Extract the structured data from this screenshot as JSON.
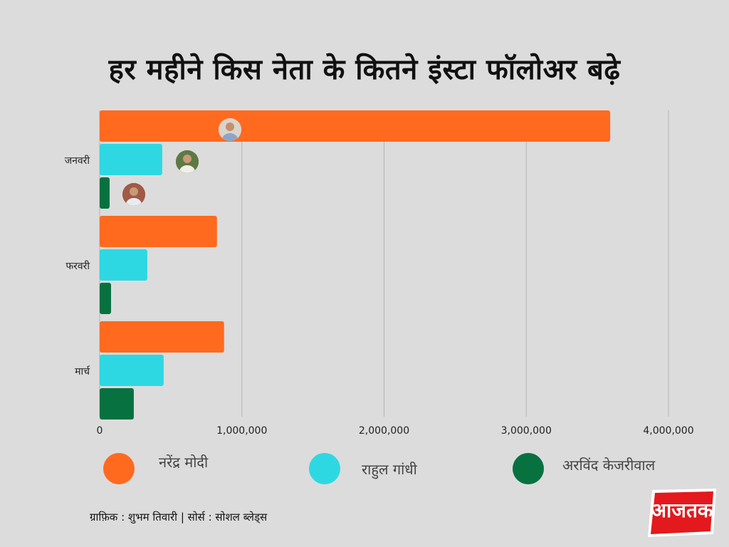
{
  "title": "हर महीने किस नेता के कितने इंस्टा फॉलोअर बढ़े",
  "credit": "ग्राफ़िक : शुभम तिवारी  | सोर्स : सोशल  ब्लेड्स",
  "logo_text": "आजतक",
  "chart_data": {
    "type": "bar",
    "orientation": "horizontal",
    "categories": [
      "जनवरी",
      "फरवरी",
      "मार्च"
    ],
    "series": [
      {
        "name": "नरेंद्र मोदी",
        "color": "#ff6a1f",
        "values": [
          3590000,
          825000,
          875000
        ]
      },
      {
        "name": "राहुल गांधी",
        "color": "#2ed8e2",
        "values": [
          440000,
          335000,
          450000
        ]
      },
      {
        "name": "अरविंद केजरीवाल",
        "color": "#087140",
        "values": [
          70000,
          80000,
          240000
        ]
      }
    ],
    "xlim": [
      0,
      4000000
    ],
    "xticks": [
      0,
      1000000,
      2000000,
      3000000,
      4000000
    ],
    "xtick_labels": [
      "0",
      "1,000,000",
      "2,000,000",
      "3,000,000",
      "4,000,000"
    ],
    "grid": true,
    "legend_position": "bottom"
  }
}
